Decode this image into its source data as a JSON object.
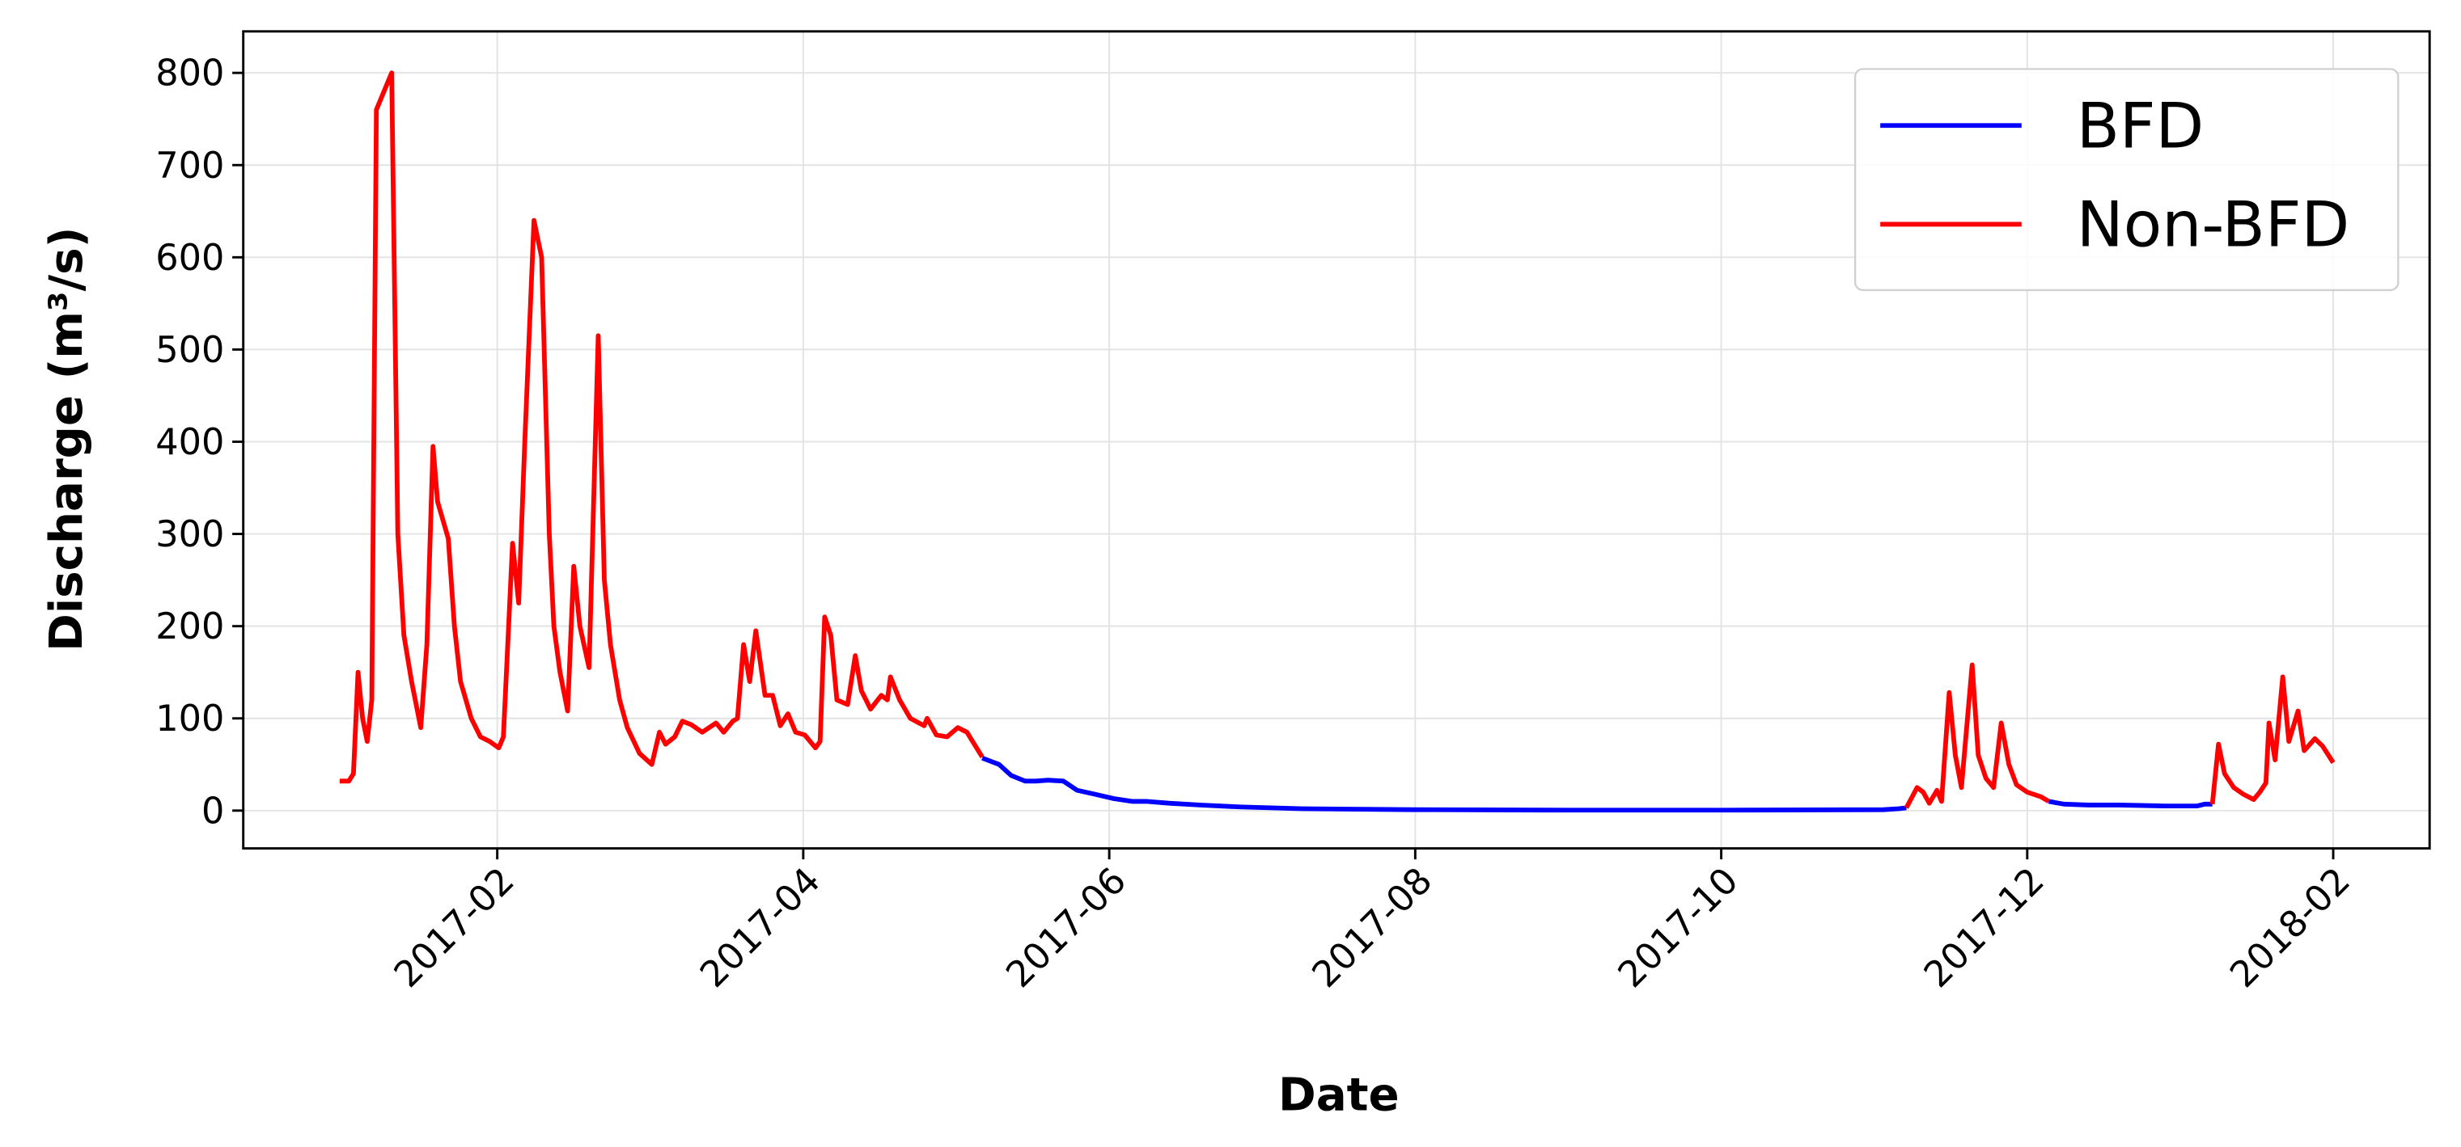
{
  "chart_data": {
    "type": "line",
    "xlabel": "Date",
    "ylabel": "Discharge (m³/s)",
    "x": [
      -0.03,
      0.03,
      0.06,
      0.09,
      0.12,
      0.15,
      0.18,
      0.21,
      0.31,
      0.35,
      0.39,
      0.44,
      0.5,
      0.54,
      0.58,
      0.61,
      0.68,
      0.72,
      0.76,
      0.83,
      0.89,
      0.95,
      1.01,
      1.04,
      1.1,
      1.14,
      1.18,
      1.24,
      1.29,
      1.34,
      1.37,
      1.41,
      1.46,
      1.5,
      1.54,
      1.6,
      1.66,
      1.7,
      1.74,
      1.8,
      1.85,
      1.93,
      2.01,
      2.06,
      2.1,
      2.16,
      2.21,
      2.27,
      2.34,
      2.43,
      2.48,
      2.54,
      2.57,
      2.61,
      2.65,
      2.69,
      2.75,
      2.8,
      2.85,
      2.9,
      2.95,
      3.01,
      3.08,
      3.11,
      3.14,
      3.18,
      3.22,
      3.29,
      3.34,
      3.38,
      3.44,
      3.51,
      3.55,
      3.57,
      3.63,
      3.7,
      3.79,
      3.81,
      3.87,
      3.94,
      4.01,
      4.07,
      4.17,
      4.28,
      4.36,
      4.45,
      4.52,
      4.6,
      4.7,
      4.79,
      4.9,
      5.03,
      5.15,
      5.24,
      5.39,
      5.6,
      5.85,
      6.26,
      6.98,
      8.0,
      9.03,
      10.06,
      10.16,
      10.21,
      10.28,
      10.32,
      10.36,
      10.41,
      10.44,
      10.49,
      10.53,
      10.57,
      10.64,
      10.68,
      10.73,
      10.78,
      10.83,
      10.88,
      10.93,
      11.0,
      11.09,
      11.14,
      11.24,
      11.4,
      11.6,
      11.9,
      12.11,
      12.16,
      12.21,
      12.25,
      12.29,
      12.35,
      12.41,
      12.48,
      12.52,
      12.56,
      12.58,
      12.62,
      12.67,
      12.71,
      12.77,
      12.81,
      12.88,
      12.93,
      13.0
    ],
    "series": [
      {
        "name": "BFD",
        "color": "#0000ff",
        "values": [
          null,
          null,
          null,
          null,
          null,
          null,
          null,
          null,
          null,
          null,
          null,
          null,
          null,
          null,
          null,
          null,
          null,
          null,
          null,
          null,
          null,
          null,
          null,
          null,
          null,
          null,
          null,
          null,
          null,
          null,
          null,
          null,
          null,
          null,
          null,
          null,
          null,
          null,
          null,
          null,
          null,
          null,
          null,
          null,
          null,
          null,
          null,
          null,
          null,
          null,
          null,
          null,
          null,
          null,
          null,
          null,
          null,
          null,
          null,
          null,
          null,
          null,
          null,
          null,
          null,
          null,
          null,
          null,
          null,
          null,
          null,
          null,
          null,
          null,
          null,
          null,
          null,
          null,
          null,
          null,
          null,
          null,
          57,
          50,
          38,
          32,
          32,
          33,
          32,
          22,
          18,
          13,
          10,
          10,
          8,
          6,
          4,
          2,
          1,
          0.5,
          0.5,
          1,
          2,
          3,
          null,
          null,
          null,
          null,
          null,
          null,
          null,
          null,
          null,
          null,
          null,
          null,
          null,
          null,
          null,
          null,
          null,
          10,
          7,
          6,
          6,
          5,
          5,
          7,
          7,
          null,
          null,
          null,
          null,
          null,
          null,
          null,
          null,
          null,
          null,
          null,
          null,
          null,
          null,
          null,
          null
        ]
      },
      {
        "name": "Non-BFD",
        "color": "#ff0000",
        "values": [
          32,
          32,
          40,
          150,
          100,
          75,
          120,
          760,
          800,
          300,
          190,
          140,
          90,
          180,
          395,
          335,
          295,
          200,
          140,
          100,
          80,
          75,
          68,
          80,
          290,
          225,
          400,
          640,
          600,
          300,
          200,
          150,
          108,
          265,
          200,
          155,
          515,
          250,
          180,
          120,
          90,
          62,
          50,
          85,
          72,
          80,
          97,
          93,
          85,
          95,
          85,
          97,
          100,
          180,
          140,
          195,
          125,
          125,
          92,
          105,
          85,
          82,
          68,
          75,
          210,
          190,
          120,
          115,
          168,
          130,
          110,
          125,
          120,
          145,
          120,
          100,
          92,
          100,
          82,
          80,
          90,
          85,
          58,
          null,
          null,
          null,
          null,
          null,
          null,
          null,
          null,
          null,
          null,
          null,
          null,
          null,
          null,
          null,
          null,
          null,
          null,
          null,
          null,
          3,
          25,
          20,
          8,
          22,
          10,
          128,
          60,
          25,
          158,
          60,
          35,
          25,
          95,
          50,
          28,
          20,
          15,
          10,
          null,
          null,
          null,
          null,
          null,
          null,
          7,
          72,
          40,
          25,
          18,
          12,
          20,
          30,
          95,
          55,
          145,
          75,
          108,
          65,
          78,
          70,
          52
        ]
      }
    ],
    "xlim": [
      -0.66,
      13.63
    ],
    "xticks": [
      {
        "value": 1,
        "label": "2017-02"
      },
      {
        "value": 3,
        "label": "2017-04"
      },
      {
        "value": 5,
        "label": "2017-06"
      },
      {
        "value": 7,
        "label": "2017-08"
      },
      {
        "value": 9,
        "label": "2017-10"
      },
      {
        "value": 11,
        "label": "2017-12"
      },
      {
        "value": 13,
        "label": "2018-02"
      }
    ],
    "ylim": [
      -41,
      845
    ],
    "yticks": [
      0,
      100,
      200,
      300,
      400,
      500,
      600,
      700,
      800
    ],
    "grid": true,
    "legend": "upper right"
  }
}
